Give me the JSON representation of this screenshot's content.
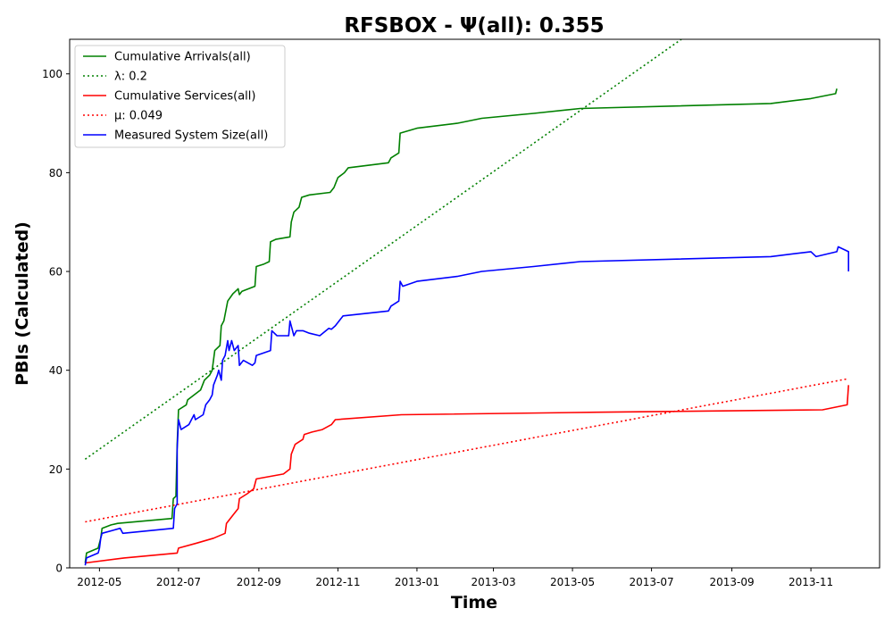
{
  "chart_data": {
    "type": "line",
    "title": "RFSBOX -  Ψ(all): 0.355",
    "xlabel": "Time",
    "ylabel": "PBIs (Calculated)",
    "xlim": [
      "2012-04-08",
      "2013-12-24"
    ],
    "ylim": [
      0,
      107
    ],
    "x_ticks": [
      "2012-05",
      "2012-07",
      "2012-09",
      "2012-11",
      "2013-01",
      "2013-03",
      "2013-05",
      "2013-07",
      "2013-09",
      "2013-11"
    ],
    "y_ticks": [
      0,
      20,
      40,
      60,
      80,
      100
    ],
    "grid": false,
    "legend_position": "top-left",
    "series": [
      {
        "name": "Cumulative Arrivals(all)",
        "color": "#008000",
        "style": "solid",
        "points": [
          [
            "2012-04-20",
            1
          ],
          [
            "2012-04-21",
            3
          ],
          [
            "2012-04-30",
            4
          ],
          [
            "2012-05-02",
            6
          ],
          [
            "2012-05-03",
            8
          ],
          [
            "2012-05-10",
            8.7
          ],
          [
            "2012-05-15",
            9
          ],
          [
            "2012-06-26",
            10
          ],
          [
            "2012-06-27",
            14
          ],
          [
            "2012-06-29",
            14.5
          ],
          [
            "2012-06-30",
            25
          ],
          [
            "2012-07-01",
            32
          ],
          [
            "2012-07-07",
            33
          ],
          [
            "2012-07-08",
            34
          ],
          [
            "2012-07-18",
            36
          ],
          [
            "2012-07-21",
            38
          ],
          [
            "2012-07-25",
            39
          ],
          [
            "2012-07-27",
            40
          ],
          [
            "2012-07-29",
            44
          ],
          [
            "2012-08-02",
            45
          ],
          [
            "2012-08-03",
            49
          ],
          [
            "2012-08-05",
            50
          ],
          [
            "2012-08-08",
            54
          ],
          [
            "2012-08-12",
            55.5
          ],
          [
            "2012-08-16",
            56.5
          ],
          [
            "2012-08-17",
            55.3
          ],
          [
            "2012-08-19",
            56
          ],
          [
            "2012-08-29",
            57
          ],
          [
            "2012-08-30",
            61
          ],
          [
            "2012-09-05",
            61.5
          ],
          [
            "2012-09-09",
            62
          ],
          [
            "2012-09-10",
            66
          ],
          [
            "2012-09-14",
            66.5
          ],
          [
            "2012-09-25",
            67
          ],
          [
            "2012-09-26",
            70
          ],
          [
            "2012-09-28",
            72
          ],
          [
            "2012-10-02",
            73
          ],
          [
            "2012-10-04",
            75
          ],
          [
            "2012-10-10",
            75.5
          ],
          [
            "2012-10-26",
            76
          ],
          [
            "2012-10-29",
            77
          ],
          [
            "2012-11-01",
            79
          ],
          [
            "2012-11-06",
            80
          ],
          [
            "2012-11-09",
            81
          ],
          [
            "2012-12-10",
            82
          ],
          [
            "2012-12-12",
            83
          ],
          [
            "2012-12-18",
            84
          ],
          [
            "2012-12-19",
            88
          ],
          [
            "2013-01-01",
            89
          ],
          [
            "2013-02-01",
            90
          ],
          [
            "2013-02-20",
            91
          ],
          [
            "2013-04-01",
            92
          ],
          [
            "2013-05-07",
            93
          ],
          [
            "2013-10-01",
            94
          ],
          [
            "2013-11-01",
            95
          ],
          [
            "2013-11-20",
            96
          ],
          [
            "2013-11-21",
            97
          ]
        ]
      },
      {
        "name": "λ: 0.2",
        "color": "#008000",
        "style": "dotted",
        "points": [
          [
            "2012-04-20",
            22
          ],
          [
            "2013-07-24",
            107
          ]
        ]
      },
      {
        "name": "Cumulative Services(all)",
        "color": "#ff0000",
        "style": "solid",
        "points": [
          [
            "2012-04-20",
            1
          ],
          [
            "2012-05-20",
            2
          ],
          [
            "2012-06-30",
            3
          ],
          [
            "2012-07-01",
            4
          ],
          [
            "2012-07-15",
            5
          ],
          [
            "2012-07-28",
            6
          ],
          [
            "2012-08-06",
            7
          ],
          [
            "2012-08-07",
            9
          ],
          [
            "2012-08-10",
            10
          ],
          [
            "2012-08-13",
            11
          ],
          [
            "2012-08-16",
            12
          ],
          [
            "2012-08-17",
            14
          ],
          [
            "2012-08-23",
            15
          ],
          [
            "2012-08-28",
            16
          ],
          [
            "2012-08-30",
            18
          ],
          [
            "2012-09-20",
            19
          ],
          [
            "2012-09-25",
            20
          ],
          [
            "2012-09-26",
            23
          ],
          [
            "2012-09-29",
            25
          ],
          [
            "2012-10-05",
            26
          ],
          [
            "2012-10-06",
            27
          ],
          [
            "2012-10-12",
            27.5
          ],
          [
            "2012-10-20",
            28
          ],
          [
            "2012-10-27",
            29
          ],
          [
            "2012-10-30",
            30
          ],
          [
            "2012-12-20",
            31
          ],
          [
            "2013-05-20",
            31.5
          ],
          [
            "2013-11-10",
            32
          ],
          [
            "2013-11-29",
            33
          ],
          [
            "2013-11-30",
            37
          ]
        ]
      },
      {
        "name": "μ: 0.049",
        "color": "#ff0000",
        "style": "dotted",
        "points": [
          [
            "2012-04-20",
            9.3
          ],
          [
            "2013-11-30",
            38.3
          ]
        ]
      },
      {
        "name": "Measured System Size(all)",
        "color": "#0000ff",
        "style": "solid",
        "points": [
          [
            "2012-04-20",
            0.5
          ],
          [
            "2012-04-21",
            2
          ],
          [
            "2012-04-30",
            3
          ],
          [
            "2012-05-01",
            4
          ],
          [
            "2012-05-02",
            6
          ],
          [
            "2012-05-03",
            7
          ],
          [
            "2012-05-17",
            8
          ],
          [
            "2012-05-19",
            7
          ],
          [
            "2012-06-27",
            8
          ],
          [
            "2012-06-28",
            12
          ],
          [
            "2012-06-30",
            13
          ],
          [
            "2012-06-30",
            24
          ],
          [
            "2012-07-01",
            30
          ],
          [
            "2012-07-03",
            28
          ],
          [
            "2012-07-09",
            29
          ],
          [
            "2012-07-11",
            30
          ],
          [
            "2012-07-13",
            31
          ],
          [
            "2012-07-14",
            30
          ],
          [
            "2012-07-20",
            31
          ],
          [
            "2012-07-22",
            33
          ],
          [
            "2012-07-25",
            34
          ],
          [
            "2012-07-27",
            35
          ],
          [
            "2012-07-28",
            37
          ],
          [
            "2012-07-31",
            39
          ],
          [
            "2012-08-01",
            40
          ],
          [
            "2012-08-03",
            38
          ],
          [
            "2012-08-04",
            42
          ],
          [
            "2012-08-06",
            43
          ],
          [
            "2012-08-08",
            46
          ],
          [
            "2012-08-09",
            44
          ],
          [
            "2012-08-11",
            46
          ],
          [
            "2012-08-13",
            44
          ],
          [
            "2012-08-16",
            45
          ],
          [
            "2012-08-17",
            41
          ],
          [
            "2012-08-20",
            42
          ],
          [
            "2012-08-27",
            41
          ],
          [
            "2012-08-29",
            41.5
          ],
          [
            "2012-08-30",
            43
          ],
          [
            "2012-09-10",
            44
          ],
          [
            "2012-09-11",
            48
          ],
          [
            "2012-09-15",
            47
          ],
          [
            "2012-09-24",
            47
          ],
          [
            "2012-09-25",
            50
          ],
          [
            "2012-09-28",
            47
          ],
          [
            "2012-09-30",
            48
          ],
          [
            "2012-10-05",
            48
          ],
          [
            "2012-10-10",
            47.5
          ],
          [
            "2012-10-18",
            47
          ],
          [
            "2012-10-25",
            48.5
          ],
          [
            "2012-10-27",
            48.3
          ],
          [
            "2012-10-30",
            49
          ],
          [
            "2012-11-02",
            50
          ],
          [
            "2012-11-05",
            51
          ],
          [
            "2012-12-10",
            52
          ],
          [
            "2012-12-12",
            53
          ],
          [
            "2012-12-18",
            54
          ],
          [
            "2012-12-19",
            58
          ],
          [
            "2012-12-21",
            57
          ],
          [
            "2013-01-01",
            58
          ],
          [
            "2013-02-01",
            59
          ],
          [
            "2013-02-20",
            60
          ],
          [
            "2013-04-01",
            61
          ],
          [
            "2013-05-07",
            62
          ],
          [
            "2013-10-01",
            63
          ],
          [
            "2013-11-01",
            64
          ],
          [
            "2013-11-05",
            63
          ],
          [
            "2013-11-21",
            64
          ],
          [
            "2013-11-22",
            65
          ],
          [
            "2013-11-30",
            64
          ],
          [
            "2013-11-30",
            60
          ]
        ]
      }
    ]
  }
}
